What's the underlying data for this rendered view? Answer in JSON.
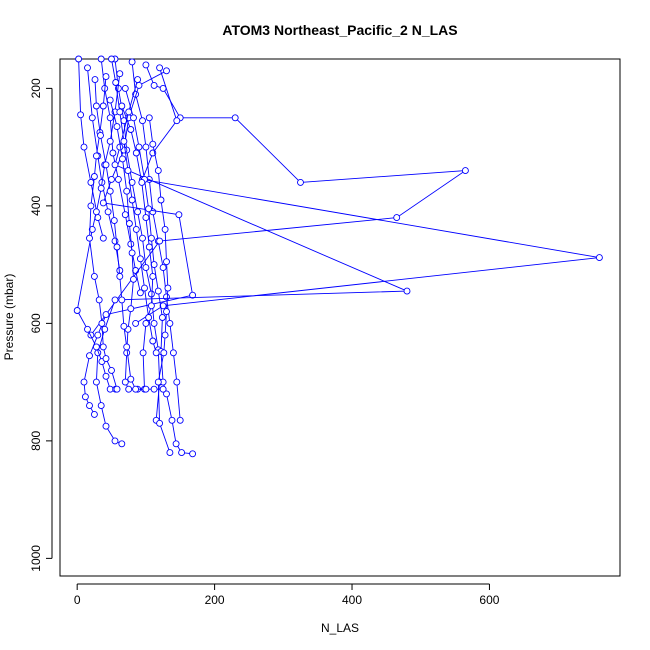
{
  "chart_data": {
    "type": "line",
    "title": "ATOM3 Northeast_Pacific_2 N_LAS",
    "xlabel": "N_LAS",
    "ylabel": "Pressure (mbar)",
    "xlim": [
      -25,
      790
    ],
    "ylim": [
      1030,
      150
    ],
    "y_reversed": true,
    "xticks": [
      0,
      200,
      400,
      600
    ],
    "yticks": [
      200,
      400,
      600,
      800,
      1000
    ],
    "grid": false,
    "legend": "none",
    "series_color": "#0000ff",
    "marker": "open-circle",
    "series": [
      {
        "points": [
          [
            2,
            150
          ],
          [
            5,
            245
          ],
          [
            10,
            300
          ],
          [
            20,
            360
          ],
          [
            30,
            420
          ],
          [
            38,
            455
          ]
        ]
      },
      {
        "points": [
          [
            15,
            165
          ],
          [
            22,
            250
          ],
          [
            30,
            315
          ],
          [
            36,
            360
          ],
          [
            45,
            410
          ],
          [
            55,
            460
          ],
          [
            62,
            510
          ]
        ]
      },
      {
        "points": [
          [
            35,
            150
          ],
          [
            40,
            200
          ],
          [
            48,
            250
          ],
          [
            52,
            310
          ],
          [
            60,
            355
          ],
          [
            70,
            415
          ],
          [
            78,
            465
          ],
          [
            85,
            510
          ],
          [
            92,
            548
          ]
        ]
      },
      {
        "points": [
          [
            55,
            150
          ],
          [
            60,
            200
          ],
          [
            68,
            255
          ],
          [
            72,
            305
          ],
          [
            80,
            360
          ],
          [
            88,
            410
          ],
          [
            95,
            455
          ],
          [
            100,
            505
          ],
          [
            108,
            550
          ],
          [
            112,
            600
          ],
          [
            118,
            645
          ],
          [
            120,
            700
          ],
          [
            115,
            765
          ]
        ]
      },
      {
        "points": [
          [
            80,
            155
          ],
          [
            85,
            210
          ],
          [
            95,
            255
          ],
          [
            100,
            300
          ],
          [
            105,
            355
          ],
          [
            110,
            410
          ],
          [
            118,
            460
          ],
          [
            125,
            505
          ],
          [
            130,
            555
          ],
          [
            135,
            600
          ],
          [
            140,
            650
          ],
          [
            145,
            700
          ],
          [
            150,
            765
          ]
        ]
      },
      {
        "points": [
          [
            100,
            160
          ],
          [
            112,
            195
          ],
          [
            125,
            200
          ],
          [
            150,
            250
          ],
          [
            230,
            250
          ],
          [
            325,
            360
          ],
          [
            565,
            340
          ],
          [
            465,
            420
          ],
          [
            120,
            460
          ],
          [
            20,
            620
          ]
        ]
      },
      {
        "points": [
          [
            120,
            165
          ],
          [
            145,
            255
          ],
          [
            110,
            310
          ],
          [
            95,
            355
          ],
          [
            760,
            488
          ],
          [
            125,
            570
          ],
          [
            85,
            600
          ]
        ]
      },
      {
        "points": [
          [
            130,
            170
          ],
          [
            90,
            195
          ],
          [
            75,
            250
          ],
          [
            68,
            305
          ],
          [
            50,
            355
          ],
          [
            38,
            395
          ],
          [
            148,
            415
          ],
          [
            168,
            552
          ],
          [
            42,
            585
          ],
          [
            30,
            620
          ],
          [
            18,
            655
          ],
          [
            10,
            700
          ],
          [
            12,
            725
          ],
          [
            18,
            740
          ],
          [
            25,
            755
          ]
        ]
      },
      {
        "points": [
          [
            88,
            185
          ],
          [
            75,
            240
          ],
          [
            62,
            300
          ],
          [
            55,
            330
          ],
          [
            480,
            545
          ],
          [
            55,
            560
          ],
          [
            40,
            610
          ],
          [
            30,
            650
          ],
          [
            28,
            700
          ],
          [
            35,
            740
          ],
          [
            42,
            775
          ],
          [
            55,
            800
          ],
          [
            65,
            805
          ]
        ]
      },
      {
        "points": [
          [
            62,
            175
          ],
          [
            55,
            240
          ],
          [
            48,
            290
          ],
          [
            40,
            330
          ],
          [
            35,
            370
          ],
          [
            28,
            410
          ],
          [
            22,
            440
          ],
          [
            0,
            578
          ],
          [
            15,
            610
          ],
          [
            28,
            640
          ],
          [
            36,
            665
          ],
          [
            42,
            690
          ],
          [
            48,
            712
          ],
          [
            56,
            712
          ]
        ]
      },
      {
        "points": [
          [
            42,
            180
          ],
          [
            38,
            230
          ],
          [
            33,
            275
          ],
          [
            28,
            315
          ],
          [
            25,
            350
          ],
          [
            20,
            400
          ],
          [
            18,
            455
          ],
          [
            25,
            520
          ],
          [
            32,
            560
          ],
          [
            36,
            600
          ],
          [
            38,
            640
          ],
          [
            42,
            660
          ],
          [
            50,
            680
          ],
          [
            58,
            712
          ]
        ]
      },
      {
        "points": [
          [
            70,
            200
          ],
          [
            82,
            250
          ],
          [
            90,
            300
          ],
          [
            98,
            355
          ],
          [
            104,
            405
          ],
          [
            108,
            455
          ],
          [
            112,
            500
          ],
          [
            118,
            545
          ],
          [
            124,
            590
          ],
          [
            122,
            648
          ],
          [
            125,
            700
          ],
          [
            130,
            720
          ],
          [
            138,
            765
          ],
          [
            144,
            805
          ],
          [
            152,
            820
          ],
          [
            168,
            822
          ]
        ]
      },
      {
        "points": [
          [
            65,
            230
          ],
          [
            78,
            270
          ],
          [
            86,
            310
          ],
          [
            94,
            360
          ],
          [
            100,
            420
          ],
          [
            105,
            470
          ],
          [
            110,
            520
          ],
          [
            108,
            570
          ],
          [
            100,
            600
          ],
          [
            96,
            650
          ],
          [
            98,
            712
          ],
          [
            112,
            712
          ],
          [
            125,
            712
          ]
        ]
      },
      {
        "points": [
          [
            48,
            220
          ],
          [
            58,
            265
          ],
          [
            66,
            320
          ],
          [
            72,
            375
          ],
          [
            76,
            430
          ],
          [
            80,
            480
          ],
          [
            82,
            525
          ],
          [
            78,
            575
          ],
          [
            74,
            610
          ],
          [
            72,
            650
          ],
          [
            70,
            700
          ],
          [
            75,
            712
          ],
          [
            88,
            712
          ]
        ]
      },
      {
        "points": [
          [
            26,
            185
          ],
          [
            28,
            230
          ],
          [
            34,
            280
          ],
          [
            42,
            330
          ],
          [
            48,
            375
          ],
          [
            54,
            425
          ],
          [
            58,
            470
          ],
          [
            62,
            520
          ],
          [
            65,
            560
          ],
          [
            68,
            605
          ],
          [
            72,
            640
          ],
          [
            78,
            695
          ],
          [
            85,
            712
          ],
          [
            100,
            712
          ]
        ]
      },
      {
        "points": [
          [
            105,
            250
          ],
          [
            110,
            295
          ],
          [
            118,
            340
          ],
          [
            122,
            390
          ],
          [
            128,
            440
          ],
          [
            130,
            495
          ],
          [
            132,
            540
          ],
          [
            130,
            580
          ],
          [
            128,
            620
          ],
          [
            126,
            650
          ],
          [
            118,
            700
          ],
          [
            120,
            770
          ],
          [
            135,
            820
          ]
        ]
      },
      {
        "points": [
          [
            50,
            150
          ],
          [
            56,
            190
          ],
          [
            62,
            240
          ],
          [
            68,
            290
          ],
          [
            74,
            340
          ],
          [
            80,
            390
          ],
          [
            86,
            440
          ],
          [
            92,
            490
          ],
          [
            98,
            540
          ],
          [
            104,
            590
          ],
          [
            110,
            630
          ],
          [
            115,
            650
          ]
        ]
      }
    ]
  }
}
